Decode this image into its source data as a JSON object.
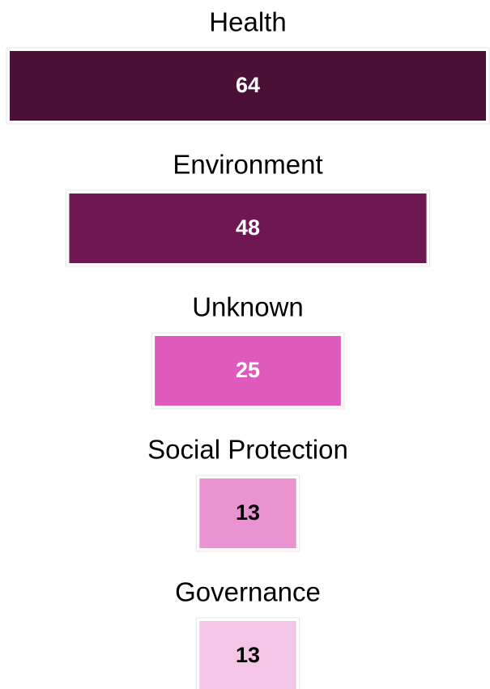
{
  "chart_data": {
    "type": "bar",
    "categories": [
      "Health",
      "Environment",
      "Unknown",
      "Social Protection",
      "Governance"
    ],
    "values": [
      64,
      48,
      25,
      13,
      13
    ],
    "colors": [
      "#4a1038",
      "#6e1752",
      "#de5bbb",
      "#e994d0",
      "#f3c6e8"
    ]
  }
}
